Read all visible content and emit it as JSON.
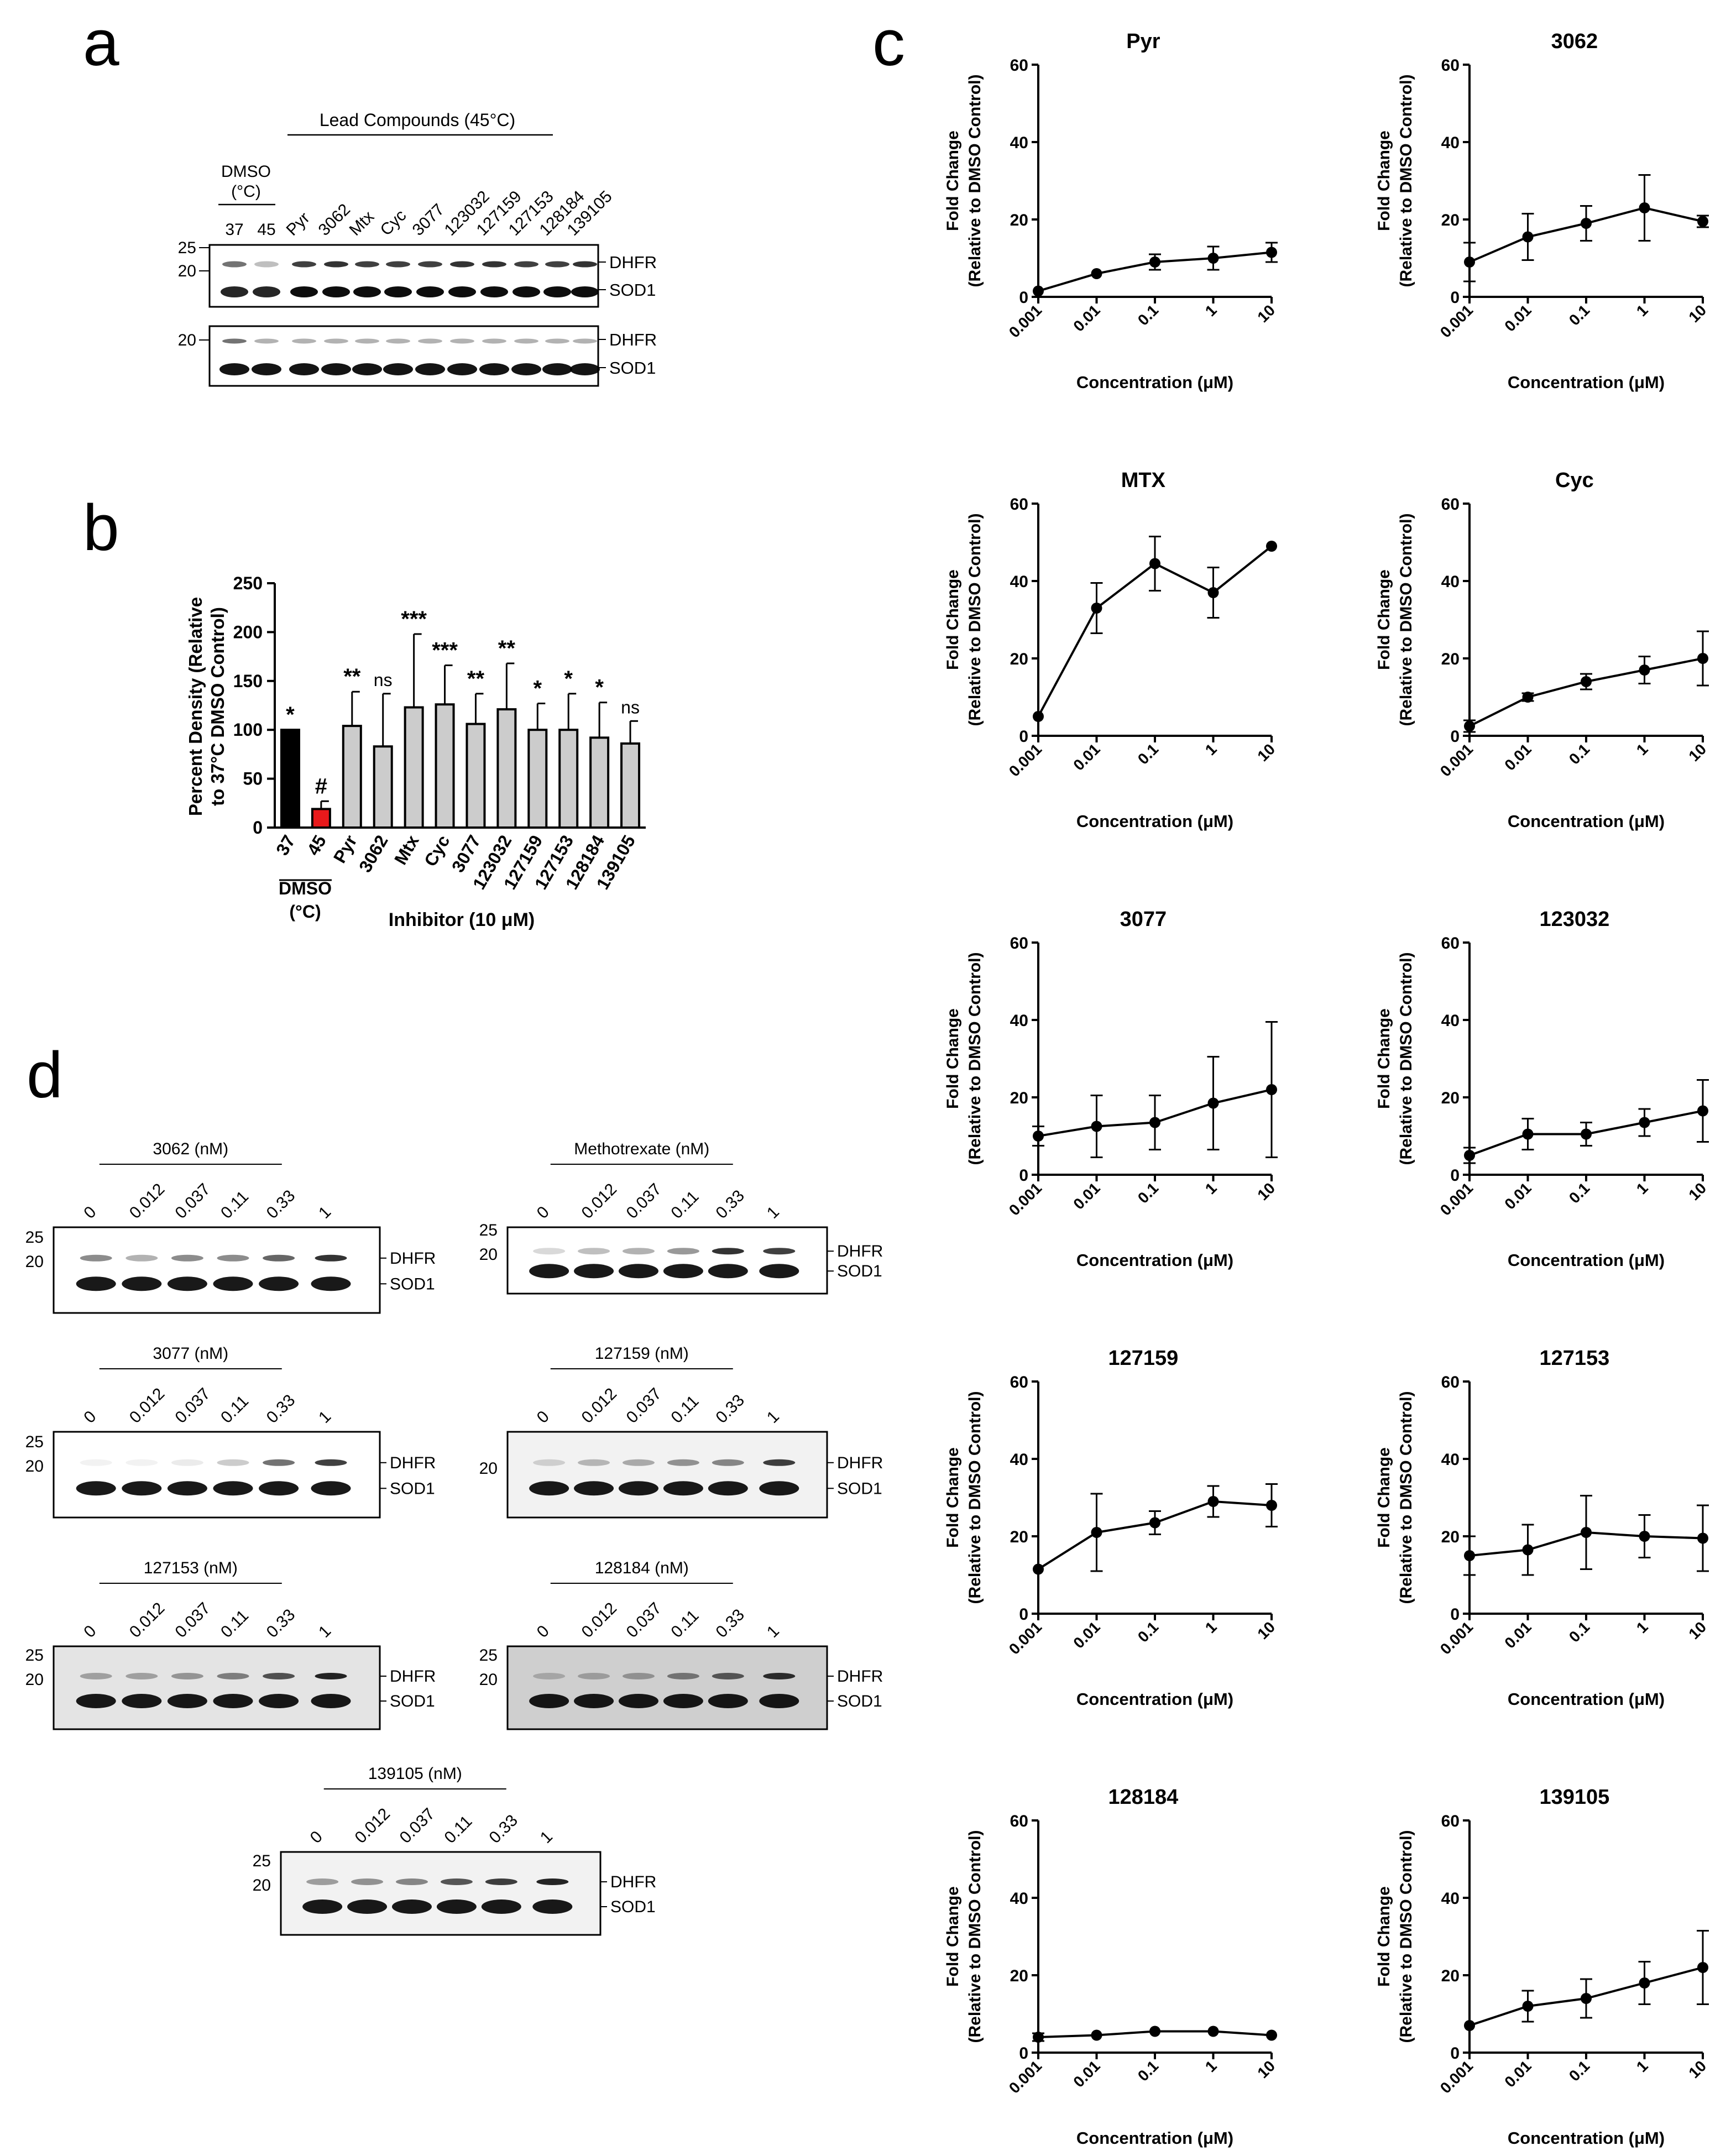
{
  "panel_letters": {
    "a": "a",
    "b": "b",
    "c": "c",
    "d": "d"
  },
  "panel_a": {
    "header": "Lead Compounds (45°C)",
    "dmso_label_1": "DMSO",
    "dmso_label_2": "(°C)",
    "lanes": [
      "37",
      "45",
      "Pyr",
      "3062",
      "Mtx",
      "Cyc",
      "3077",
      "123032",
      "127159",
      "127153",
      "128184",
      "139105"
    ],
    "blot1_markers": [
      "25",
      "20"
    ],
    "blot2_markers": [
      "20"
    ],
    "bands": [
      "DHFR",
      "SOD1"
    ]
  },
  "panel_d": {
    "concentrations": [
      "0",
      "0.012",
      "0.037",
      "0.11",
      "0.33",
      "1"
    ],
    "bands": [
      "DHFR",
      "SOD1"
    ],
    "blots": [
      {
        "title": "3062 (nM)",
        "markers": [
          "25",
          "20"
        ]
      },
      {
        "title": "Methotrexate (nM)",
        "markers": [
          "25",
          "20"
        ]
      },
      {
        "title": "3077 (nM)",
        "markers": [
          "25",
          "20"
        ]
      },
      {
        "title": "127159 (nM)",
        "markers": [
          "20"
        ]
      },
      {
        "title": "127153 (nM)",
        "markers": [
          "25",
          "20"
        ]
      },
      {
        "title": "128184 (nM)",
        "markers": [
          "25",
          "20"
        ]
      },
      {
        "title": "139105 (nM)",
        "markers": [
          "25",
          "20"
        ]
      }
    ]
  },
  "chart_data": [
    {
      "panel": "b",
      "type": "bar",
      "ylabel": "Percent Density (Relative to 37°C DMSO Control)",
      "ylabel_lines": [
        "Percent Density (Relative",
        "to 37°C DMSO Control)"
      ],
      "xlabel": "Inhibitor (10 μM)",
      "group_label_1": "DMSO",
      "group_label_2": "(°C)",
      "ylim": [
        0,
        250
      ],
      "yticks": [
        "0",
        "50",
        "100",
        "150",
        "200",
        "250"
      ],
      "categories": [
        "37",
        "45",
        "Pyr",
        "3062",
        "Mtx",
        "Cyc",
        "3077",
        "123032",
        "127159",
        "127153",
        "128184",
        "139105"
      ],
      "values": [
        100,
        19,
        104,
        83,
        123,
        126,
        106,
        121,
        100,
        100,
        92,
        86
      ],
      "errors": [
        0,
        8,
        35,
        54,
        75,
        40,
        31,
        47,
        27,
        37,
        36,
        23
      ],
      "colors": [
        "#000000",
        "#e8191b",
        "#cccccc",
        "#cccccc",
        "#cccccc",
        "#cccccc",
        "#cccccc",
        "#cccccc",
        "#cccccc",
        "#cccccc",
        "#cccccc",
        "#cccccc"
      ],
      "significance": [
        "*",
        "#",
        "**",
        "ns",
        "***",
        "***",
        "**",
        "**",
        "*",
        "*",
        "*",
        "ns"
      ]
    },
    {
      "panel": "c",
      "type": "line",
      "xlabel": "Concentration (μM)",
      "ylabel_lines": [
        "Fold Change",
        "(Relative to DMSO Control)"
      ],
      "ylim": [
        0,
        60
      ],
      "yticks": [
        "0",
        "20",
        "40",
        "60"
      ],
      "x": [
        "0.001",
        "0.01",
        "0.1",
        "1",
        "10"
      ],
      "series": [
        {
          "name": "Pyr",
          "values": [
            1.5,
            6,
            9,
            10,
            11.5
          ],
          "errors": [
            0,
            0,
            2,
            3,
            2.5
          ]
        },
        {
          "name": "3062",
          "values": [
            9,
            15.5,
            19,
            23,
            19.5
          ],
          "errors": [
            5,
            6,
            4.5,
            8.5,
            1.5
          ]
        },
        {
          "name": "MTX",
          "values": [
            5,
            33,
            44.5,
            37,
            49
          ],
          "errors": [
            0,
            6.5,
            7,
            6.5,
            0
          ]
        },
        {
          "name": "Cyc",
          "values": [
            2.5,
            10,
            14,
            17,
            20
          ],
          "errors": [
            1.5,
            1,
            2,
            3.5,
            7
          ]
        },
        {
          "name": "3077",
          "values": [
            10,
            12.5,
            13.5,
            18.5,
            22
          ],
          "errors": [
            2.5,
            8,
            7,
            12,
            17.5
          ]
        },
        {
          "name": "123032",
          "values": [
            5,
            10.5,
            10.5,
            13.5,
            16.5
          ],
          "errors": [
            2,
            4,
            3,
            3.5,
            8
          ]
        },
        {
          "name": "127159",
          "values": [
            11.5,
            21,
            23.5,
            29,
            28
          ],
          "errors": [
            0,
            10,
            3,
            4,
            5.5
          ]
        },
        {
          "name": "127153",
          "values": [
            15,
            16.5,
            21,
            20,
            19.5
          ],
          "errors": [
            5,
            6.5,
            9.5,
            5.5,
            8.5
          ]
        },
        {
          "name": "128184",
          "values": [
            4,
            4.5,
            5.5,
            5.5,
            4.5
          ],
          "errors": [
            1,
            0,
            0,
            0,
            0
          ]
        },
        {
          "name": "139105",
          "values": [
            7,
            12,
            14,
            18,
            22
          ],
          "errors": [
            0,
            4,
            5,
            5.5,
            9.5
          ]
        }
      ]
    }
  ]
}
